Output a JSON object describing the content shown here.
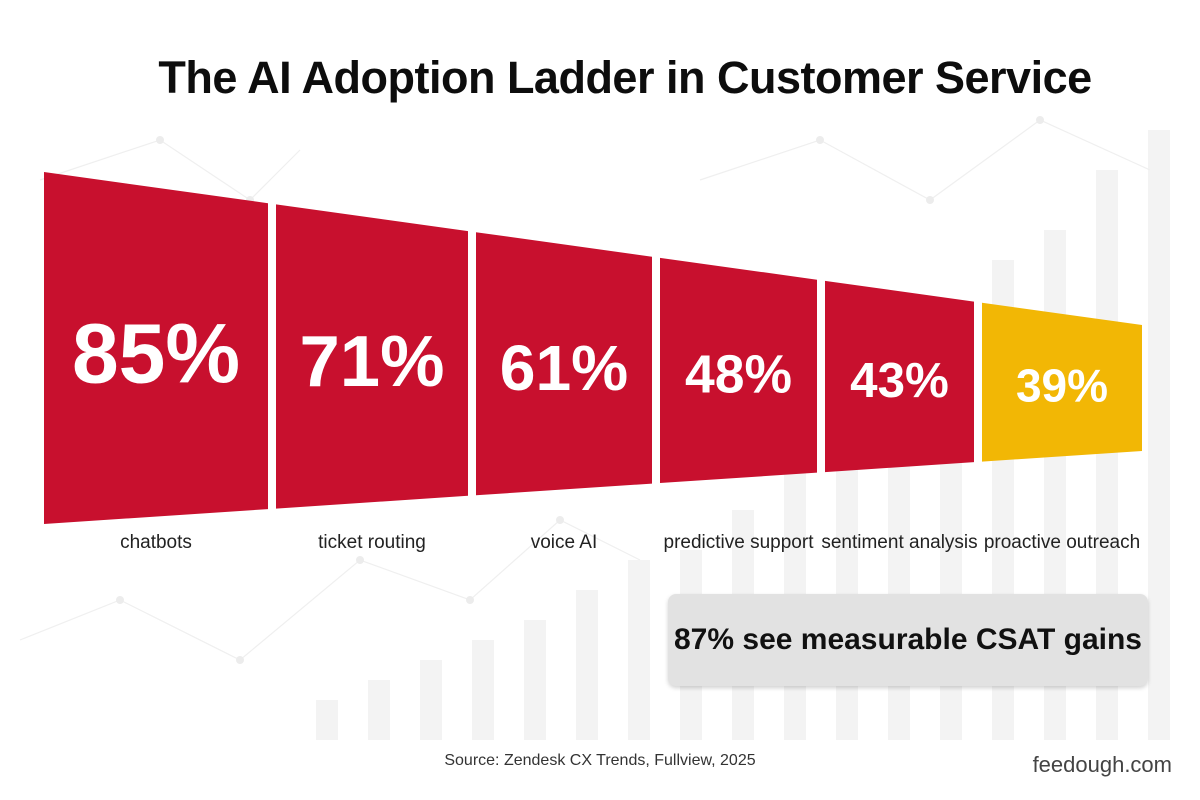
{
  "chart_data": {
    "type": "bar",
    "title": "The AI Adoption Ladder in Customer Service",
    "categories": [
      "chatbots",
      "ticket routing",
      "voice AI",
      "predictive support",
      "sentiment analysis",
      "proactive outreach"
    ],
    "values": [
      85,
      71,
      61,
      48,
      43,
      39
    ],
    "value_labels": [
      "85%",
      "71%",
      "61%",
      "48%",
      "43%",
      "39%"
    ],
    "colors": [
      "#c8102e",
      "#c8102e",
      "#c8102e",
      "#c8102e",
      "#c8102e",
      "#f2b705"
    ],
    "highlight_color": "#f2b705",
    "bar_color": "#c8102e",
    "legend": "none",
    "grid": false
  },
  "callout": "87% see measurable CSAT gains",
  "source": "Source:  Zendesk CX Trends, Fullview, 2025",
  "brand": "feedough.com"
}
